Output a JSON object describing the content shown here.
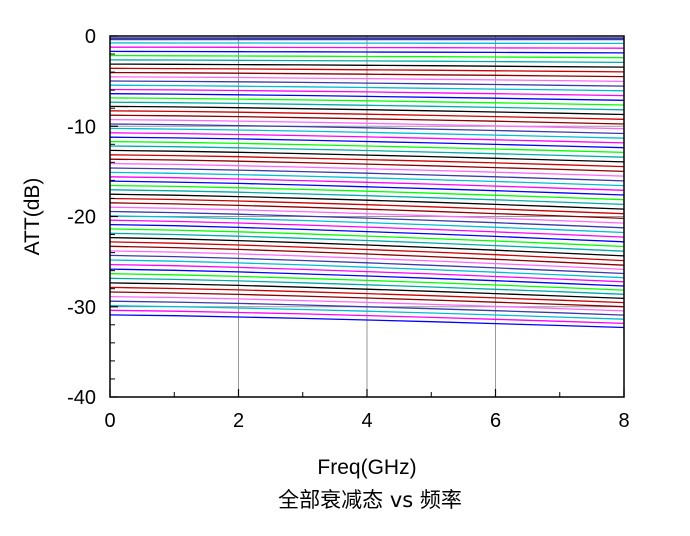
{
  "chart_data": {
    "type": "line",
    "xlabel": "Freq(GHz)",
    "ylabel": "ATT(dB)",
    "caption": "全部衰减态 vs 频率",
    "xlim": [
      0,
      8
    ],
    "ylim": [
      -40,
      0
    ],
    "x_ticks": [
      0,
      2,
      4,
      6,
      8
    ],
    "y_ticks": [
      0,
      -10,
      -20,
      -30,
      -40
    ],
    "grid": true,
    "legend": "none",
    "x": [
      0,
      1,
      2,
      3,
      4,
      5,
      6,
      7,
      8
    ],
    "num_states": 64,
    "step_db": 0.5,
    "series": [
      {
        "state": 0,
        "start_db": -0.3,
        "end_db": -0.3
      },
      {
        "state": 16,
        "start_db": -7.8,
        "end_db": -8.7
      },
      {
        "state": 32,
        "start_db": -15.6,
        "end_db": -17.1
      },
      {
        "state": 48,
        "start_db": -23.3,
        "end_db": -25.4
      },
      {
        "state": 63,
        "start_db": -30.9,
        "end_db": -32.3
      }
    ],
    "palette": [
      "#3a3aa8",
      "#00bcd4",
      "#ff00ff",
      "#0000ff",
      "#00ff00",
      "#00aaaa",
      "#000000",
      "#cc0000",
      "#8b0000",
      "#ff66ff"
    ]
  }
}
